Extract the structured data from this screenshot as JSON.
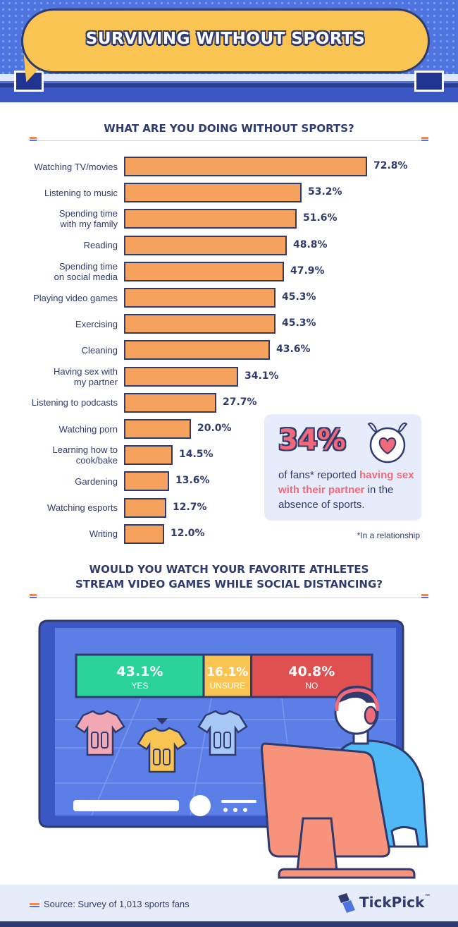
{
  "header": {
    "title": "SURVIVING WITHOUT SPORTS"
  },
  "section1": {
    "title": "WHAT ARE YOU DOING WITHOUT SPORTS?"
  },
  "chart_data": [
    {
      "type": "bar",
      "orientation": "horizontal",
      "title": "WHAT ARE YOU DOING WITHOUT SPORTS?",
      "categories": [
        "Watching TV/movies",
        "Listening to music",
        "Spending time with my family",
        "Reading",
        "Spending time on social media",
        "Playing video games",
        "Exercising",
        "Cleaning",
        "Having sex with my partner",
        "Listening to podcasts",
        "Watching porn",
        "Learning how to cook/bake",
        "Gardening",
        "Watching esports",
        "Writing"
      ],
      "category_lines": [
        [
          "Watching TV/movies"
        ],
        [
          "Listening to music"
        ],
        [
          "Spending time",
          "with my family"
        ],
        [
          "Reading"
        ],
        [
          "Spending time",
          "on social media"
        ],
        [
          "Playing video games"
        ],
        [
          "Exercising"
        ],
        [
          "Cleaning"
        ],
        [
          "Having sex with",
          "my partner"
        ],
        [
          "Listening to podcasts"
        ],
        [
          "Watching porn"
        ],
        [
          "Learning how to",
          "cook/bake"
        ],
        [
          "Gardening"
        ],
        [
          "Watching esports"
        ],
        [
          "Writing"
        ]
      ],
      "values": [
        72.8,
        53.2,
        51.6,
        48.8,
        47.9,
        45.3,
        45.3,
        43.6,
        34.1,
        27.7,
        20.0,
        14.5,
        13.6,
        12.7,
        12.0
      ],
      "value_labels": [
        "72.8%",
        "53.2%",
        "51.6%",
        "48.8%",
        "47.9%",
        "45.3%",
        "45.3%",
        "43.6%",
        "34.1%",
        "27.7%",
        "20.0%",
        "14.5%",
        "13.6%",
        "12.7%",
        "12.0%"
      ],
      "unit": "%",
      "xlim": [
        0,
        72.8
      ],
      "bar_color": "#f6a25f",
      "outline_color": "#2f3b6e",
      "grid": false,
      "legend": "none"
    },
    {
      "type": "bar",
      "orientation": "stacked-horizontal",
      "title": "WOULD YOU WATCH YOUR FAVORITE ATHLETES STREAM VIDEO GAMES WHILE SOCIAL DISTANCING?",
      "categories": [
        "YES",
        "UNSURE",
        "NO"
      ],
      "values": [
        43.1,
        16.1,
        40.8
      ],
      "value_labels": [
        "43.1%",
        "16.1%",
        "40.8%"
      ],
      "colors": [
        "#2ad39a",
        "#f9c452",
        "#e05050"
      ],
      "unit": "%"
    }
  ],
  "callout": {
    "stat": "34%",
    "text_before": "of fans* reported ",
    "text_highlight": "having sex with their partner",
    "text_after": " in the absence of sports.",
    "icon": "heart-devil-icon"
  },
  "footnote": "*In a relationship",
  "section2": {
    "title_line1": "WOULD YOU WATCH YOUR FAVORITE ATHLETES",
    "title_line2": "STREAM VIDEO GAMES WHILE SOCIAL DISTANCING?"
  },
  "illustration": {
    "jersey_number": "00",
    "icons": [
      "jersey-icon",
      "controller-icon",
      "gamer-icon",
      "monitor-icon"
    ]
  },
  "footer": {
    "source": "Source: Survey of 1,013 sports fans",
    "brand": "TickPick",
    "brand_mark": "™"
  },
  "colors": {
    "navy": "#2f3b6e",
    "blue": "#4f74e0",
    "orange": "#f6a25f",
    "yellow": "#f9c452",
    "pink": "#ef6a7a",
    "green": "#2ad39a",
    "red": "#e05050",
    "panel": "#e7ecfa"
  }
}
